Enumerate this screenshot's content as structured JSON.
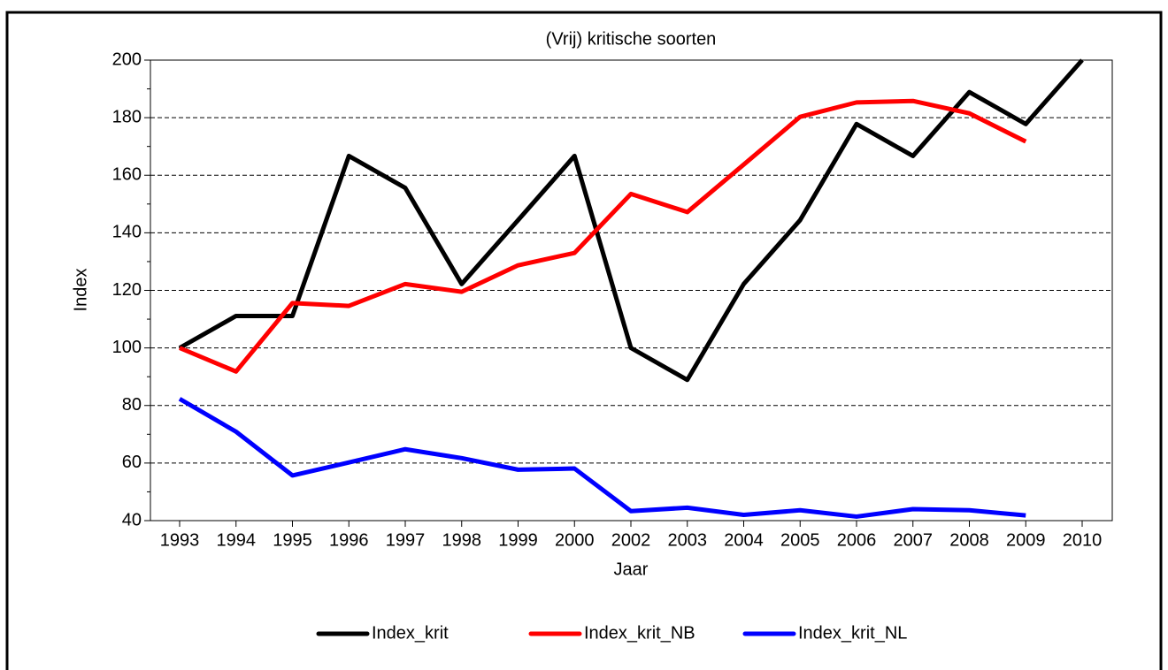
{
  "chart_data": {
    "type": "line",
    "title": "(Vrij) kritische soorten",
    "x_label": "Jaar",
    "y_label": "Index",
    "categories": [
      "1993",
      "1994",
      "1995",
      "1996",
      "1997",
      "1998",
      "1999",
      "2000",
      "2002",
      "2003",
      "2004",
      "2005",
      "2006",
      "2007",
      "2008",
      "2009",
      "2010"
    ],
    "series": [
      {
        "name": "Index_krit",
        "color": "#000000",
        "values": [
          100,
          111.1,
          111.1,
          166.7,
          155.6,
          122.2,
          144.4,
          166.7,
          100,
          88.9,
          122.2,
          144.4,
          177.8,
          166.7,
          188.9,
          177.8,
          200
        ]
      },
      {
        "name": "Index_krit_NB",
        "color": "#ff0000",
        "values": [
          100,
          91.8,
          115.6,
          114.6,
          122.2,
          119.5,
          128.7,
          133,
          153.5,
          147.2,
          163.7,
          180.3,
          185.3,
          185.8,
          181.5,
          171.7,
          null
        ]
      },
      {
        "name": "Index_krit_NL",
        "color": "#0000ff",
        "values": [
          82.3,
          70.9,
          55.7,
          60.2,
          64.8,
          61.7,
          57.7,
          58.1,
          43.3,
          44.5,
          42,
          43.6,
          41.4,
          44,
          43.6,
          41.8,
          null
        ]
      }
    ],
    "ylim": [
      40,
      200
    ],
    "yticks": [
      40,
      60,
      80,
      100,
      120,
      140,
      160,
      180,
      200
    ],
    "grid": true
  }
}
